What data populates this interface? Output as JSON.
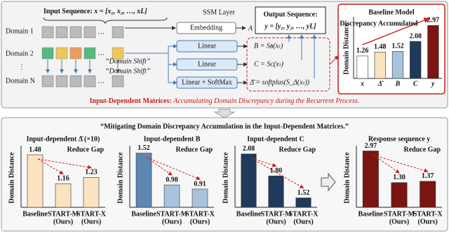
{
  "input_sequence": {
    "label": "Input Sequence:",
    "formula": "x = [x₁, x₂, …, xL]"
  },
  "domains": [
    "Domain 1",
    "Domain 2",
    "Domain N"
  ],
  "domain_shift": [
    "“Domain Shift”",
    "“Domain Shift”"
  ],
  "ssm_layer": "SSM Layer",
  "embedding": "Embedding",
  "matrix_a": "A",
  "linear_layers": [
    "Linear",
    "Linear",
    "Linear + SoftMax"
  ],
  "equations": [
    "B = Sʙ(xₜ)",
    "C = Sᴄ(xₜ)",
    "Δ̄ = softplus(S_Δ(xₜ))"
  ],
  "output": {
    "label": "Output Sequence:",
    "formula": "y = [y₁, y₂, …, yL]"
  },
  "caption": {
    "lead": "Input-Dependent Matrices:",
    "text": "Accumulating Domain Discrepancy during the Recurrent Process."
  },
  "bottom_title": "“Mitigating Domain Discrepancy Accumulation in the Input-Dependent Matrices.”",
  "chart_data": [
    {
      "type": "bar",
      "title": "Baseline Model",
      "y_label": "Domain Distance",
      "categories": [
        "x",
        "Δ̄",
        "B",
        "C",
        "y"
      ],
      "values": [
        1.26,
        1.48,
        1.52,
        2.08,
        2.97
      ],
      "colors": [
        "#ffffff",
        "#fbe3c2",
        "#a9c3de",
        "#1f3a5a",
        "#7a1512"
      ],
      "ylim": [
        0,
        3.3
      ],
      "annotation": "Discrepancy Accumulated"
    },
    {
      "type": "bar",
      "title": "Input-dependent Δ̄ (×10)",
      "y_label": "Domain Distance",
      "categories": [
        "Baseline",
        "START-M",
        "START-X"
      ],
      "category_notes": [
        null,
        "(Ours)",
        "(Ours)"
      ],
      "values": [
        1.48,
        1.16,
        1.23
      ],
      "colors": [
        "#fbe3c2",
        "#fbe3c2",
        "#fbe3c2"
      ],
      "ylim": [
        0.9,
        1.55
      ],
      "annotation": "Reduce Gap"
    },
    {
      "type": "bar",
      "title": "Input-dependent B",
      "y_label": "Domain Distance",
      "categories": [
        "Baseline",
        "START-M",
        "START-X"
      ],
      "category_notes": [
        null,
        "(Ours)",
        "(Ours)"
      ],
      "values": [
        1.52,
        0.98,
        0.91
      ],
      "colors": [
        "#5e86b3",
        "#a9c3de",
        "#a9c3de"
      ],
      "ylim": [
        0.6,
        1.6
      ],
      "annotation": "Reduce Gap"
    },
    {
      "type": "bar",
      "title": "Input-dependent C",
      "y_label": "Domain Distance",
      "categories": [
        "Baseline",
        "START-M",
        "START-X"
      ],
      "category_notes": [
        null,
        "(Ours)",
        "(Ours)"
      ],
      "values": [
        2.08,
        1.8,
        1.52
      ],
      "value_labels": [
        "2.08",
        "1.80",
        "1.52"
      ],
      "colors": [
        "#1f3a5a",
        "#1f3a5a",
        "#1f3a5a"
      ],
      "ylim": [
        1.4,
        2.15
      ],
      "annotation": "Reduce Gap"
    },
    {
      "type": "bar",
      "title": "Response sequence y",
      "y_label": "Domain Distance",
      "categories": [
        "Baseline",
        "START-M",
        "START-X"
      ],
      "category_notes": [
        null,
        "(Ours)",
        "(Ours)"
      ],
      "values": [
        2.97,
        1.3,
        1.37
      ],
      "value_labels": [
        "2.97",
        "1.30",
        "1.37"
      ],
      "colors": [
        "#7a1512",
        "#7a1512",
        "#7a1512"
      ],
      "ylim": [
        0,
        3.1
      ],
      "annotation": "Reduce Gap"
    }
  ]
}
